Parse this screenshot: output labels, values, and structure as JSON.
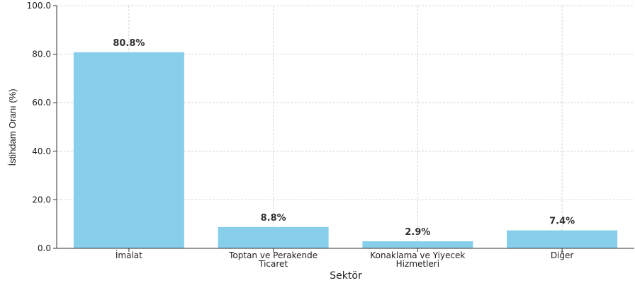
{
  "chart_data": {
    "type": "bar",
    "title": "",
    "xlabel": "Sektör",
    "ylabel": "İstihdam Oranı (%)",
    "categories": [
      "İmalat",
      "Toptan ve Perakende Ticaret",
      "Konaklama ve Yiyecek Hizmetleri",
      "Diğer"
    ],
    "category_lines": [
      [
        "İmalat"
      ],
      [
        "Toptan ve Perakende",
        "Ticaret"
      ],
      [
        "Konaklama ve Yiyecek",
        "Hizmetleri"
      ],
      [
        "Diğer"
      ]
    ],
    "values": [
      80.8,
      8.8,
      2.9,
      7.4
    ],
    "data_labels": [
      "80.8%",
      "8.8%",
      "2.9%",
      "7.4%"
    ],
    "ylim": [
      0,
      100
    ],
    "yticks": [
      0,
      20,
      40,
      60,
      80,
      100
    ],
    "ytick_labels": [
      "0.0",
      "20.0",
      "40.0",
      "60.0",
      "80.0",
      "100.0"
    ],
    "grid": true,
    "bar_color": "#87ceeb"
  }
}
